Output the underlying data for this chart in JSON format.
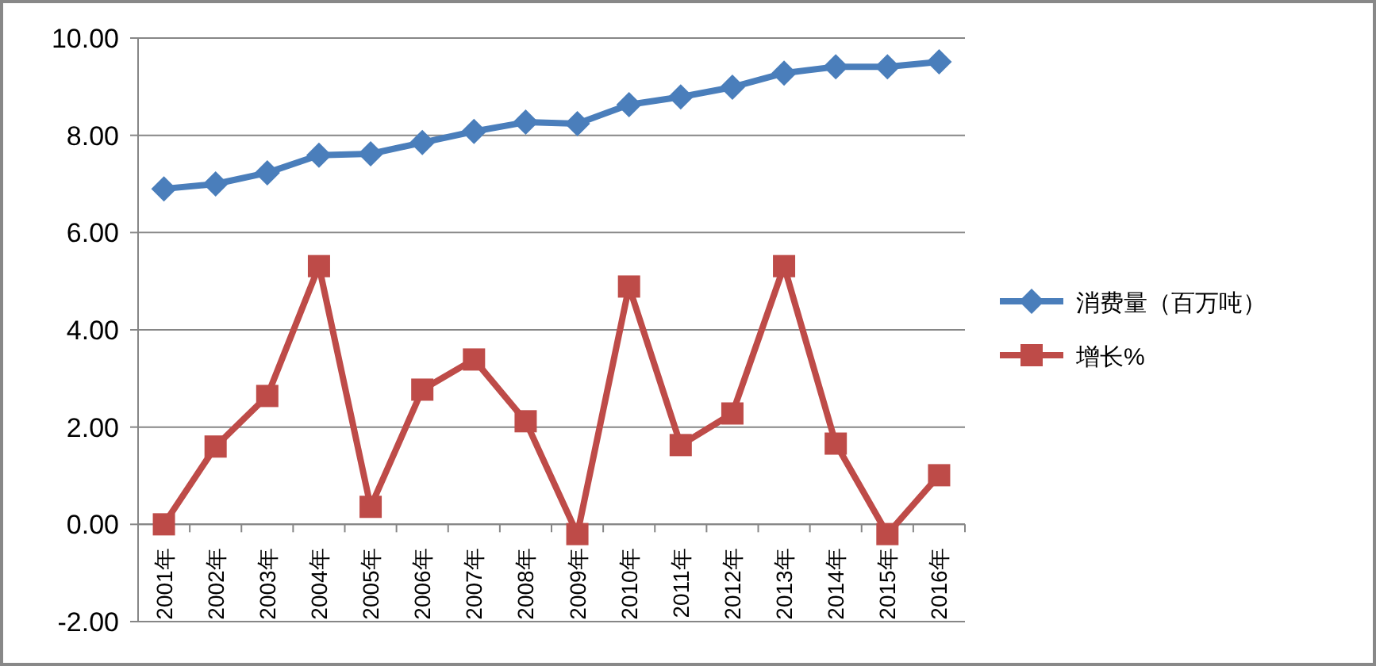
{
  "chart_data": {
    "type": "line",
    "categories": [
      "2001年",
      "2002年",
      "2003年",
      "2004年",
      "2005年",
      "2006年",
      "2007年",
      "2008年",
      "2009年",
      "2010年",
      "2011年",
      "2012年",
      "2013年",
      "2014年",
      "2015年",
      "2016年"
    ],
    "series": [
      {
        "name": "消费量（百万吨）",
        "color": "#4a7ebb",
        "marker": "diamond",
        "values": [
          6.9,
          7.0,
          7.23,
          7.59,
          7.62,
          7.85,
          8.08,
          8.27,
          8.24,
          8.63,
          8.79,
          8.99,
          9.28,
          9.41,
          9.41,
          9.51
        ]
      },
      {
        "name": "增长%",
        "color": "#be4b48",
        "marker": "square",
        "values": [
          0,
          1.6,
          2.64,
          5.31,
          0.36,
          2.77,
          3.39,
          2.12,
          -0.2,
          4.89,
          1.63,
          2.28,
          5.31,
          1.66,
          -0.2,
          1.01
        ]
      }
    ],
    "ylim": [
      -2,
      10
    ],
    "yticks": [
      {
        "value": -2,
        "label": "-2.00"
      },
      {
        "value": 0,
        "label": "0.00"
      },
      {
        "value": 2,
        "label": "2.00"
      },
      {
        "value": 4,
        "label": "4.00"
      },
      {
        "value": 6,
        "label": "6.00"
      },
      {
        "value": 8,
        "label": "8.00"
      },
      {
        "value": 10,
        "label": "10.00"
      }
    ],
    "grid": "y",
    "legend": "right"
  }
}
